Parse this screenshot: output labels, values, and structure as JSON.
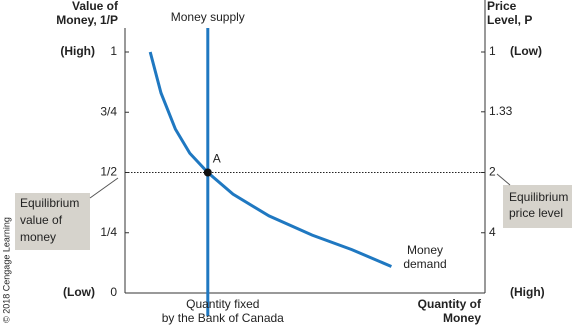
{
  "chart_data": {
    "type": "line",
    "y_label": [
      "Value of",
      "Money, 1/P"
    ],
    "y2_label": [
      "Price",
      "Level, P"
    ],
    "x_label": [
      "Quantity of",
      "Money"
    ],
    "xlim": [
      0,
      100
    ],
    "ylim": [
      0,
      1
    ],
    "yticks": [
      0,
      {
        "value": 0.25,
        "label": "1/4"
      },
      {
        "value": 0.5,
        "label": "1/2"
      },
      {
        "value": 0.75,
        "label": "3/4"
      },
      1
    ],
    "y_end_labels": {
      "top": "(High)",
      "bottom": "(Low)"
    },
    "y2_scale": "reciprocal",
    "y2ticks": [
      1,
      1.33,
      2,
      4
    ],
    "y2_end_labels": {
      "top": "(Low)",
      "bottom": "(High)"
    },
    "series": [
      {
        "name": [
          "Money",
          "demand"
        ],
        "color": "#1f78c1",
        "x": [
          7,
          10,
          14,
          18,
          23,
          30,
          40,
          52,
          63,
          74
        ],
        "values": [
          1,
          0.83,
          0.68,
          0.58,
          0.5,
          0.41,
          0.32,
          0.24,
          0.18,
          0.11
        ]
      }
    ],
    "supply": {
      "name": "Money supply",
      "x": 23,
      "color": "#1f78c1",
      "note": [
        "Quantity fixed",
        "by the Bank of Canada"
      ]
    },
    "equilibrium": {
      "label": "A",
      "x": 23,
      "y": 0.5,
      "value_note": [
        "Equilibrium",
        "value of",
        "money"
      ],
      "price_note": [
        "Equilibrium",
        "price level"
      ]
    },
    "copyright": "© 2018 Cengage Learning"
  }
}
